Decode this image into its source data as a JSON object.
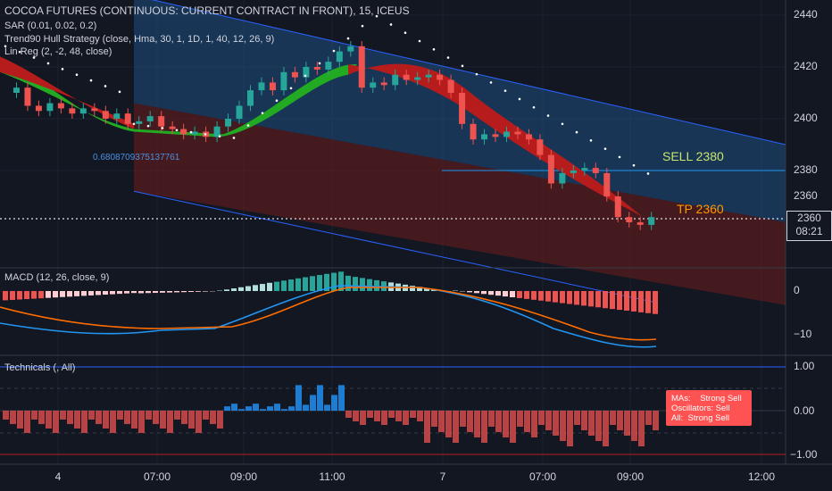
{
  "header": {
    "title": "COCOA FUTURES (CONTINUOUS: CURRENT CONTRACT IN FRONT), 15, ICEUS",
    "sar": "SAR (0.01, 0.02, 0.2)",
    "strategy": "Trend90 Hull Strategy (close, Hma, 30, 1, 1D, 1, 40, 12, 26, 9)",
    "linreg": "Lin Reg (2, -2, 48, close)"
  },
  "linreg_value": "0.6808709375137761",
  "annotations": {
    "sell": "SELL 2380",
    "tp": "TP 2360"
  },
  "price_axis": {
    "ticks": [
      "2440",
      "2420",
      "2400",
      "2380",
      "2360"
    ],
    "last_price": "2360",
    "countdown": "08:21"
  },
  "macd": {
    "label": "MACD (12, 26, close, 9)",
    "ticks": [
      "0",
      "−10"
    ]
  },
  "technicals": {
    "label": "Technicals (, All)",
    "ticks": [
      "1.00",
      "0.00",
      "−1.00"
    ],
    "summary": [
      {
        "k": "MAs:",
        "v": "Strong Sell"
      },
      {
        "k": "Oscillators:",
        "v": "Sell"
      },
      {
        "k": "All:",
        "v": "Strong Sell"
      }
    ]
  },
  "time_axis": [
    "4",
    "07:00",
    "09:00",
    "11:00",
    "7",
    "07:00",
    "09:00",
    "12:00"
  ],
  "colors": {
    "background": "#131722",
    "up": "#26a69a",
    "down": "#ef5350",
    "hull_up": "#22ab22",
    "hull_down": "#b71c1c",
    "macd_line": "#2196f3",
    "signal_line": "#ff6d00",
    "channel_upper": "#1e4e79",
    "channel_lower": "#5c1f1f"
  }
}
